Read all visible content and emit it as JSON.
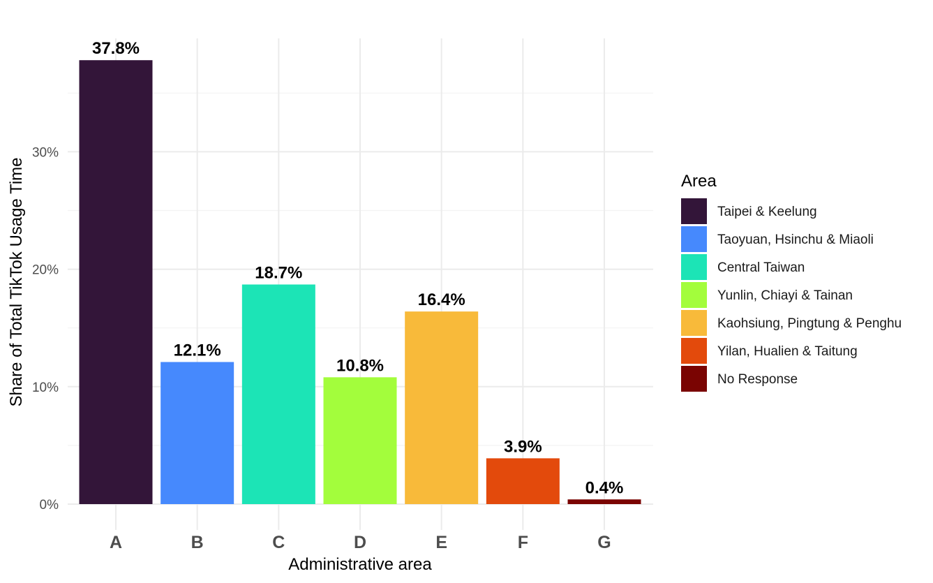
{
  "chart_data": {
    "type": "bar",
    "title": "",
    "xlabel": "Administrative area",
    "ylabel": "Share of Total TikTok Usage Time",
    "categories": [
      "A",
      "B",
      "C",
      "D",
      "E",
      "F",
      "G"
    ],
    "values": [
      37.8,
      12.1,
      18.7,
      10.8,
      16.4,
      3.9,
      0.4
    ],
    "value_labels": [
      "37.8%",
      "12.1%",
      "18.7%",
      "10.8%",
      "16.4%",
      "3.9%",
      "0.4%"
    ],
    "colors": [
      "#331539",
      "#4689fd",
      "#1ce4b6",
      "#a3fd3c",
      "#f8ba3a",
      "#e34a0c",
      "#7a0402"
    ],
    "ylim": [
      0,
      40
    ],
    "yticks": [
      0,
      10,
      20,
      30
    ],
    "ytick_labels": [
      "0%",
      "10%",
      "20%",
      "30%"
    ],
    "grid": true,
    "legend": {
      "title": "Area",
      "position": "right",
      "entries": [
        "Taipei & Keelung",
        "Taoyuan, Hsinchu & Miaoli",
        "Central Taiwan",
        "Yunlin, Chiayi & Tainan",
        "Kaohsiung, Pingtung & Penghu",
        "Yilan, Hualien & Taitung",
        "No Response"
      ]
    }
  }
}
